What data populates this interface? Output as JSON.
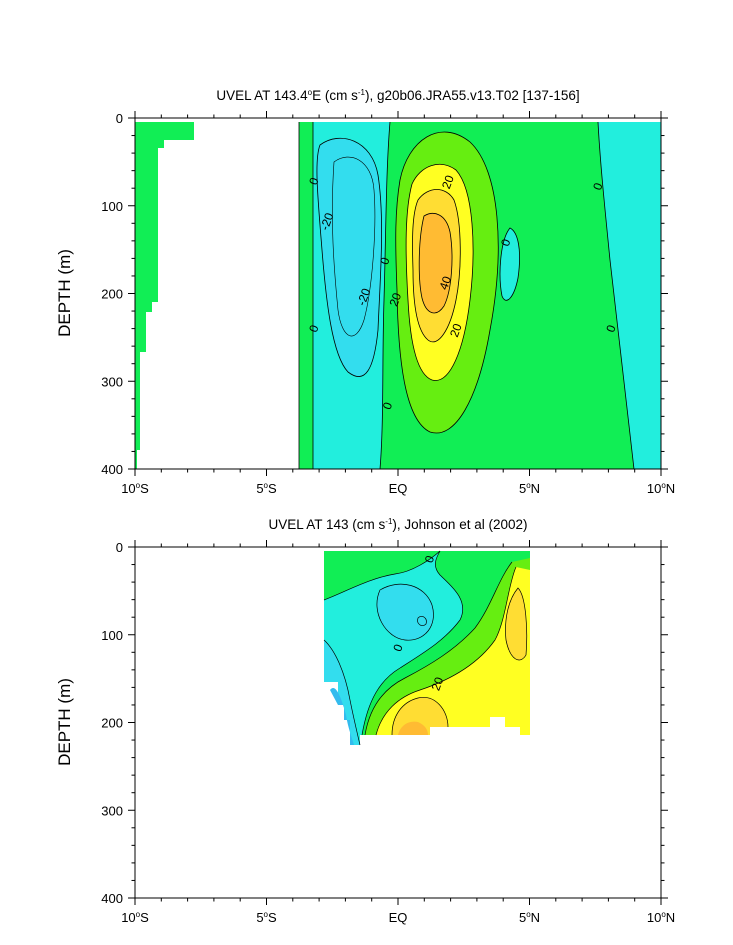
{
  "palette": {
    "neg30": "#33bbee",
    "neg20": "#33ddee",
    "neg10": "#22eedd",
    "zero_pos": "#11ee55",
    "pos10": "#66ee11",
    "pos20": "#ffff22",
    "pos30": "#ffdd33",
    "pos40": "#ffbb33",
    "line": "#000000"
  },
  "chart_data": [
    {
      "type": "contour",
      "title_parts": {
        "a": "UVEL AT 143.4",
        "b": "o",
        "c": "E (cm s",
        "d": "-1",
        "e": "), g20b06.JRA55.v13.T02 [137-156]"
      },
      "ylabel": "DEPTH (m)",
      "xlim_lat": [
        -10,
        10
      ],
      "ylim_depth": [
        0,
        400
      ],
      "y_reversed": true,
      "x_ticks": [
        {
          "lat": -10,
          "label": "10",
          "deg": "o",
          "hemi": "S"
        },
        {
          "lat": -5,
          "label": "5",
          "deg": "o",
          "hemi": "S"
        },
        {
          "lat": 0,
          "label": "EQ",
          "deg": "",
          "hemi": ""
        },
        {
          "lat": 5,
          "label": "5",
          "deg": "o",
          "hemi": "N"
        },
        {
          "lat": 10,
          "label": "10",
          "deg": "o",
          "hemi": "N"
        }
      ],
      "y_ticks": [
        "0",
        "100",
        "200",
        "300",
        "400"
      ],
      "contour_interval": 10,
      "features": [
        {
          "name": "northern-jet",
          "sign": "positive",
          "max_value": 45,
          "lat_center": 1.3,
          "depth_center": 170
        },
        {
          "name": "western-undercurrent",
          "sign": "negative",
          "min_value": -25,
          "lat_center": -1.8,
          "depth_center": 150
        },
        {
          "name": "eastern-westward",
          "sign": "negative",
          "min_value": -5,
          "lat_center": 10,
          "depth_center": 90
        },
        {
          "name": "east-small-cell",
          "sign": "negative",
          "min_value": -5,
          "lat_center": 4.2,
          "depth_center": 165
        }
      ],
      "contour_labels": [
        {
          "text": "0",
          "lat": -3.2,
          "depth": 72
        },
        {
          "text": "-20",
          "lat": -2.7,
          "depth": 118
        },
        {
          "text": "0",
          "lat": -0.5,
          "depth": 163
        },
        {
          "text": "-20",
          "lat": -1.3,
          "depth": 204
        },
        {
          "text": "20",
          "lat": -0.1,
          "depth": 207
        },
        {
          "text": "0",
          "lat": -3.2,
          "depth": 240
        },
        {
          "text": "0",
          "lat": -0.4,
          "depth": 328
        },
        {
          "text": "20",
          "lat": 1.9,
          "depth": 73
        },
        {
          "text": "40",
          "lat": 1.8,
          "depth": 188
        },
        {
          "text": "20",
          "lat": 2.2,
          "depth": 242
        },
        {
          "text": "0",
          "lat": 4.1,
          "depth": 142
        },
        {
          "text": "0",
          "lat": 7.6,
          "depth": 78
        },
        {
          "text": "0",
          "lat": 8.1,
          "depth": 240
        }
      ]
    },
    {
      "type": "contour",
      "title_parts": {
        "a": "UVEL AT 143 (cm s",
        "b": "-1",
        "c": "), Johnson et al (2002)"
      },
      "ylabel": "DEPTH (m)",
      "xlim_lat": [
        -10,
        10
      ],
      "ylim_depth": [
        0,
        400
      ],
      "y_reversed": true,
      "x_ticks": [
        {
          "lat": -10,
          "label": "10",
          "deg": "o",
          "hemi": "S"
        },
        {
          "lat": -5,
          "label": "5",
          "deg": "o",
          "hemi": "S"
        },
        {
          "lat": 0,
          "label": "EQ",
          "deg": "",
          "hemi": ""
        },
        {
          "lat": 5,
          "label": "5",
          "deg": "o",
          "hemi": "N"
        },
        {
          "lat": 10,
          "label": "10",
          "deg": "o",
          "hemi": "N"
        }
      ],
      "y_ticks": [
        "0",
        "100",
        "200",
        "300",
        "400"
      ],
      "contour_interval": 10,
      "data_extent": {
        "lat": [
          -2.8,
          5.0
        ],
        "depth": [
          5,
          225
        ]
      },
      "contour_labels": [
        {
          "text": "0",
          "lat": 1.2,
          "depth": 14
        },
        {
          "text": "0",
          "lat": 0.0,
          "depth": 115
        },
        {
          "text": "20",
          "lat": 1.5,
          "depth": 156
        }
      ]
    }
  ]
}
